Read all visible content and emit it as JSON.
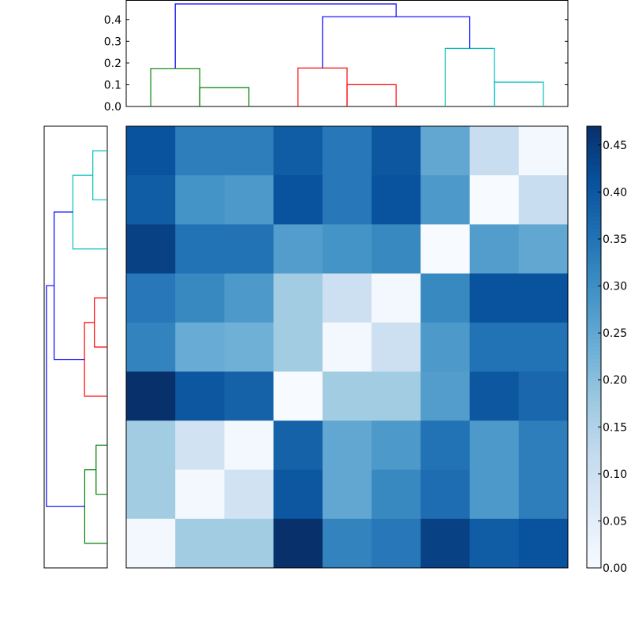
{
  "chart_data": [
    {
      "type": "dendrogram",
      "orientation": "top",
      "ylim": [
        0,
        0.49
      ],
      "yticks": [
        0.0,
        0.1,
        0.2,
        0.3,
        0.4
      ],
      "ytick_labels": [
        "0.0",
        "0.1",
        "0.2",
        "0.3",
        "0.4"
      ],
      "leaf_count": 9,
      "links": [
        {
          "x": [
            1,
            1,
            2,
            2
          ],
          "y": [
            0.0,
            0.175,
            0.175,
            0.0
          ],
          "color": "#008000"
        },
        {
          "x": [
            2,
            2,
            3,
            3
          ],
          "y": [
            0.0,
            0.087,
            0.087,
            0.0
          ],
          "color": "#008000"
        },
        {
          "x": [
            4,
            4,
            5,
            5
          ],
          "y": [
            0.0,
            0.177,
            0.177,
            0.0
          ],
          "color": "#ff0000"
        },
        {
          "x": [
            5,
            5,
            6,
            6
          ],
          "y": [
            0.0,
            0.1,
            0.1,
            0.0
          ],
          "color": "#ff0000"
        },
        {
          "x": [
            7,
            7,
            8,
            8
          ],
          "y": [
            0.0,
            0.267,
            0.267,
            0.0
          ],
          "color": "#00bfbf"
        },
        {
          "x": [
            8,
            8,
            9,
            9
          ],
          "y": [
            0.0,
            0.112,
            0.112,
            0.0
          ],
          "color": "#00bfbf"
        },
        {
          "x": [
            4.5,
            4.5,
            7.5,
            7.5
          ],
          "y": [
            0.177,
            0.413,
            0.413,
            0.267
          ],
          "color": "#0000ff"
        },
        {
          "x": [
            1.5,
            1.5,
            6,
            6
          ],
          "y": [
            0.175,
            0.472,
            0.472,
            0.413
          ],
          "color": "#0000ff"
        }
      ]
    },
    {
      "type": "dendrogram",
      "orientation": "left",
      "leaf_count": 9,
      "links": [
        {
          "x": [
            1,
            1,
            2,
            2
          ],
          "y": [
            0.0,
            0.112,
            0.112,
            0.0
          ],
          "color": "#00bfbf"
        },
        {
          "x": [
            1.5,
            1.5,
            3,
            3
          ],
          "y": [
            0.112,
            0.267,
            0.267,
            0.0
          ],
          "color": "#00bfbf"
        },
        {
          "x": [
            4,
            4,
            5,
            5
          ],
          "y": [
            0.0,
            0.1,
            0.1,
            0.0
          ],
          "color": "#ff0000"
        },
        {
          "x": [
            4.5,
            4.5,
            6,
            6
          ],
          "y": [
            0.1,
            0.177,
            0.177,
            0.0
          ],
          "color": "#ff0000"
        },
        {
          "x": [
            7,
            7,
            8,
            8
          ],
          "y": [
            0.0,
            0.087,
            0.087,
            0.0
          ],
          "color": "#008000"
        },
        {
          "x": [
            7.5,
            7.5,
            9,
            9
          ],
          "y": [
            0.087,
            0.175,
            0.175,
            0.0
          ],
          "color": "#008000"
        },
        {
          "x": [
            2.25,
            2.25,
            5.25,
            5.25
          ],
          "y": [
            0.267,
            0.413,
            0.413,
            0.177
          ],
          "color": "#0000ff"
        },
        {
          "x": [
            3.75,
            3.75,
            8.25,
            8.25
          ],
          "y": [
            0.413,
            0.472,
            0.472,
            0.175
          ],
          "color": "#0000ff"
        }
      ]
    },
    {
      "type": "heatmap",
      "colormap": "Blues",
      "vmin": 0.0,
      "vmax": 0.47,
      "values": [
        [
          0.41,
          0.33,
          0.33,
          0.39,
          0.34,
          0.4,
          0.25,
          0.11,
          0.01
        ],
        [
          0.39,
          0.29,
          0.28,
          0.41,
          0.34,
          0.41,
          0.28,
          0.0,
          0.11
        ],
        [
          0.44,
          0.35,
          0.35,
          0.27,
          0.29,
          0.31,
          0.0,
          0.27,
          0.25
        ],
        [
          0.34,
          0.31,
          0.28,
          0.17,
          0.1,
          0.01,
          0.31,
          0.41,
          0.41
        ],
        [
          0.32,
          0.24,
          0.23,
          0.17,
          0.01,
          0.1,
          0.28,
          0.35,
          0.35
        ],
        [
          0.47,
          0.4,
          0.38,
          0.0,
          0.17,
          0.17,
          0.27,
          0.4,
          0.37
        ],
        [
          0.17,
          0.09,
          0.01,
          0.38,
          0.25,
          0.28,
          0.35,
          0.28,
          0.33
        ],
        [
          0.17,
          0.01,
          0.09,
          0.4,
          0.25,
          0.31,
          0.36,
          0.28,
          0.33
        ],
        [
          0.01,
          0.17,
          0.17,
          0.47,
          0.32,
          0.34,
          0.44,
          0.39,
          0.41
        ]
      ]
    },
    {
      "type": "colorbar",
      "range": [
        0.0,
        0.47
      ],
      "ticks": [
        0.0,
        0.05,
        0.1,
        0.15,
        0.2,
        0.25,
        0.3,
        0.35,
        0.4,
        0.45
      ],
      "tick_labels": [
        "0.00",
        "0.05",
        "0.10",
        "0.15",
        "0.20",
        "0.25",
        "0.30",
        "0.35",
        "0.40",
        "0.45"
      ]
    }
  ]
}
